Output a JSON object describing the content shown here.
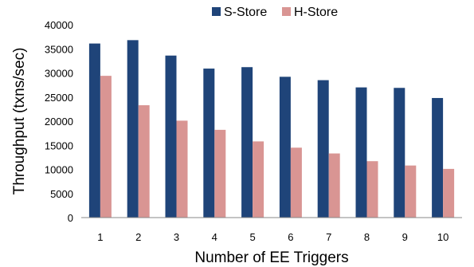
{
  "chart_data": {
    "type": "bar",
    "title": "",
    "xlabel": "Number of EE Triggers",
    "ylabel": "Throughput (txns/sec)",
    "categories": [
      "1",
      "2",
      "3",
      "4",
      "5",
      "6",
      "7",
      "8",
      "9",
      "10"
    ],
    "ylim": [
      0,
      40000
    ],
    "yticks": [
      "0",
      "5000",
      "10000",
      "15000",
      "20000",
      "25000",
      "30000",
      "35000",
      "40000"
    ],
    "grid": false,
    "legend_position": "top",
    "series": [
      {
        "name": "S-Store",
        "color": "#1f4479",
        "values": [
          36100,
          36800,
          33600,
          30900,
          31200,
          29200,
          28500,
          27000,
          26900,
          24800
        ]
      },
      {
        "name": "H-Store",
        "color": "#d99593",
        "values": [
          29400,
          23300,
          20100,
          18200,
          15800,
          14500,
          13300,
          11700,
          10800,
          10100
        ]
      }
    ]
  }
}
